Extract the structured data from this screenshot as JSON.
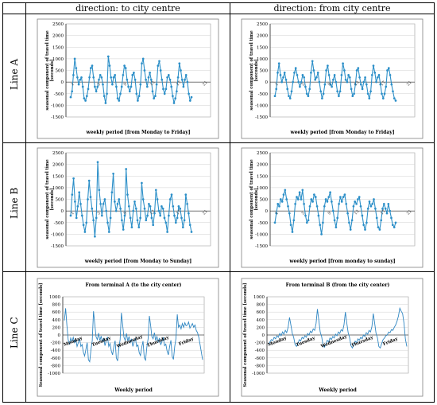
{
  "table": {
    "col_headers": [
      "direction: to city centre",
      "direction: from city centre"
    ],
    "row_labels": [
      "Line A",
      "Line B",
      "Line C"
    ]
  },
  "colors": {
    "series": "#2c8fc8",
    "series_c": "#2f86c2"
  },
  "chart_data": [
    {
      "type": "line",
      "panel": "Line A / to city centre",
      "title": "",
      "xlabel": "weekly period [from Monday to Friday]",
      "ylabel": "seasonal component of travel time [seconds]",
      "ylim": [
        -1500,
        2500
      ],
      "yticks": [
        -1500,
        -1000,
        -500,
        0,
        500,
        1000,
        1500,
        2000,
        2500
      ],
      "xticks": [
        "1",
        "5",
        "9",
        "13",
        "17",
        "21"
      ],
      "xlim": [
        0,
        22
      ],
      "markers": true,
      "values": [
        -650,
        -400,
        300,
        1000,
        600,
        200,
        -100,
        100,
        200,
        -200,
        -700,
        -800,
        -600,
        -300,
        200,
        600,
        700,
        200,
        -200,
        -400,
        -200,
        100,
        300,
        200,
        -100,
        -600,
        -900,
        -500,
        1100,
        700,
        200,
        -100,
        200,
        300,
        -200,
        -700,
        -800,
        -500,
        -200,
        300,
        700,
        600,
        100,
        -200,
        -400,
        -200,
        300,
        400,
        100,
        -500,
        -800,
        -600,
        -100,
        800,
        1000,
        500,
        100,
        -200,
        200,
        400,
        100,
        -400,
        -700,
        -600,
        -100,
        700,
        900,
        500,
        100,
        -300,
        -500,
        -300,
        200,
        300,
        100,
        -200,
        -600,
        -900,
        -700,
        -400,
        200,
        800,
        500,
        100,
        -200,
        100,
        300,
        0,
        -500,
        -800,
        -650
      ]
    },
    {
      "type": "line",
      "panel": "Line A / from city centre",
      "title": "",
      "xlabel": "weekly period [from Monday to Friday]",
      "ylabel": "seasonal component of travel time [seconds]",
      "ylim": [
        -1500,
        2500
      ],
      "yticks": [
        -1500,
        -1000,
        -500,
        0,
        500,
        1000,
        1500,
        2000,
        2500
      ],
      "xticks": [
        "1",
        "5",
        "9",
        "13",
        "17",
        "21"
      ],
      "xlim": [
        0,
        22
      ],
      "markers": true,
      "values": [
        -600,
        -300,
        400,
        800,
        300,
        0,
        200,
        400,
        100,
        -300,
        -600,
        -700,
        -400,
        0,
        400,
        600,
        300,
        0,
        -200,
        0,
        300,
        200,
        -200,
        -500,
        -600,
        -300,
        400,
        900,
        500,
        100,
        200,
        400,
        0,
        -400,
        -700,
        -500,
        -100,
        500,
        700,
        300,
        -100,
        -200,
        100,
        300,
        0,
        -400,
        -600,
        -400,
        300,
        800,
        500,
        100,
        0,
        300,
        200,
        -300,
        -600,
        -500,
        -100,
        500,
        600,
        200,
        -100,
        -300,
        0,
        200,
        -100,
        -500,
        -700,
        -400,
        300,
        700,
        400,
        0,
        200,
        300,
        -100,
        -500,
        -700,
        -500,
        -200,
        500,
        600,
        300,
        -100,
        -400,
        -700,
        -800
      ]
    },
    {
      "type": "line",
      "panel": "Line B / to city centre",
      "title": "",
      "xlabel": "weekly period [from Monday to Sunday]",
      "ylabel": "seasonal component of travel time [seconds]",
      "ylim": [
        -1500,
        2500
      ],
      "yticks": [
        -1500,
        -1000,
        -500,
        0,
        500,
        1000,
        1500,
        2000,
        2500
      ],
      "xticks": [
        "1",
        "5",
        "9",
        "13",
        "17",
        "21"
      ],
      "xlim": [
        0,
        22
      ],
      "markers": true,
      "values": [
        -200,
        700,
        1400,
        400,
        -300,
        200,
        800,
        300,
        -200,
        -600,
        -900,
        -500,
        500,
        1300,
        600,
        100,
        -400,
        -1100,
        -300,
        2100,
        900,
        300,
        -200,
        300,
        500,
        0,
        -500,
        -900,
        -300,
        800,
        1600,
        400,
        0,
        300,
        500,
        100,
        -400,
        -800,
        -200,
        1800,
        700,
        200,
        -300,
        -700,
        0,
        400,
        100,
        -400,
        -700,
        -300,
        1200,
        500,
        100,
        -400,
        -200,
        300,
        200,
        -300,
        -600,
        -100,
        900,
        500,
        0,
        -200,
        200,
        100,
        -300,
        -500,
        -900,
        -200,
        500,
        700,
        200,
        -200,
        -500,
        -300,
        200,
        100,
        -300,
        -700,
        -400,
        700,
        300,
        -100,
        -600,
        -900
      ]
    },
    {
      "type": "line",
      "panel": "Line B / from city centre",
      "title": "",
      "xlabel": "weekly period [from monday to sunday]",
      "ylabel": "seasonal component of travel time [seconds]",
      "ylim": [
        -1500,
        2500
      ],
      "yticks": [
        -1500,
        -1000,
        -500,
        0,
        500,
        1000,
        1500,
        2000,
        2500
      ],
      "xticks": [
        "1",
        "5",
        "9",
        "13",
        "17",
        "21"
      ],
      "xlim": [
        0,
        22
      ],
      "markers": true,
      "values": [
        -500,
        -100,
        300,
        200,
        500,
        400,
        700,
        900,
        500,
        200,
        -100,
        -600,
        -900,
        -400,
        300,
        600,
        500,
        800,
        500,
        900,
        300,
        -200,
        -500,
        -400,
        200,
        500,
        400,
        700,
        600,
        200,
        -200,
        -600,
        -1000,
        -500,
        200,
        500,
        400,
        600,
        800,
        400,
        0,
        -400,
        -700,
        -300,
        300,
        600,
        400,
        600,
        700,
        300,
        -100,
        -500,
        -800,
        -400,
        200,
        400,
        300,
        500,
        600,
        200,
        -200,
        -600,
        -800,
        -500,
        100,
        400,
        200,
        300,
        500,
        100,
        -300,
        -700,
        -800,
        -400,
        100,
        300,
        100,
        -100,
        300,
        0,
        -300,
        -600,
        -700,
        -500
      ]
    },
    {
      "type": "line",
      "panel": "Line C / to city centre",
      "title": "From terminal A (to the city center)",
      "xlabel": "Weekly period",
      "ylabel": "Seasonal component of travel time [seconds]",
      "ylim": [
        -1000,
        1000
      ],
      "yticks": [
        -1000,
        -800,
        -600,
        -400,
        -200,
        0,
        200,
        400,
        600,
        800,
        1000
      ],
      "days": [
        "Monday",
        "Tuesday",
        "Wednesday",
        "Thursday",
        "Friday"
      ],
      "markers": false,
      "values": [
        380,
        700,
        250,
        -120,
        -250,
        -80,
        -180,
        -60,
        -200,
        -120,
        -300,
        -200,
        -100,
        -300,
        -250,
        -450,
        -550,
        -380,
        -200,
        -650,
        -700,
        -380,
        -150,
        620,
        280,
        -50,
        -120,
        50,
        -150,
        -30,
        -180,
        -80,
        -280,
        -150,
        -50,
        -300,
        -220,
        -420,
        -520,
        -300,
        -150,
        -600,
        -680,
        -350,
        -120,
        580,
        260,
        -60,
        -140,
        40,
        -160,
        -40,
        -200,
        -100,
        -300,
        -180,
        -80,
        -300,
        -260,
        -460,
        -540,
        -320,
        -160,
        -600,
        -660,
        -320,
        -100,
        500,
        250,
        -40,
        -100,
        60,
        -150,
        -40,
        -180,
        -80,
        -260,
        -160,
        -60,
        -280,
        -240,
        -420,
        -520,
        -300,
        -140,
        -560,
        -640,
        -300,
        -80,
        540,
        200,
        260,
        160,
        300,
        200,
        320,
        240,
        260,
        340,
        180,
        240,
        300,
        200,
        260,
        120,
        60,
        -60,
        -250,
        -450,
        -650
      ]
    },
    {
      "type": "line",
      "panel": "Line C / from city centre",
      "title": "From terminal B (from the city center)",
      "xlabel": "Weekly period",
      "ylabel": "Seasonal component of travel time [seconds]",
      "ylim": [
        -1000,
        1000
      ],
      "yticks": [
        -1000,
        -800,
        -600,
        -400,
        -200,
        0,
        200,
        400,
        600,
        800,
        1000
      ],
      "days": [
        "Monday",
        "Tuesday",
        "Wednesday",
        "Thursday",
        "Friday"
      ],
      "markers": false,
      "values": [
        -250,
        -180,
        -120,
        -150,
        -60,
        -100,
        -20,
        -60,
        40,
        -20,
        80,
        20,
        120,
        60,
        200,
        460,
        260,
        40,
        -60,
        -250,
        -300,
        -220,
        -120,
        -160,
        -60,
        -100,
        -20,
        -60,
        40,
        0,
        100,
        60,
        160,
        120,
        300,
        680,
        380,
        80,
        -40,
        -260,
        -320,
        -240,
        -140,
        -180,
        -80,
        -120,
        -40,
        -80,
        20,
        -20,
        80,
        40,
        140,
        100,
        260,
        600,
        320,
        60,
        -60,
        -280,
        -340,
        -260,
        -160,
        -200,
        -100,
        -140,
        -60,
        -100,
        0,
        -40,
        60,
        20,
        120,
        80,
        220,
        560,
        300,
        40,
        -80,
        -300,
        -340,
        -220,
        -120,
        -80,
        -20,
        0,
        80,
        60,
        140,
        120,
        200,
        260,
        360,
        500,
        700,
        620,
        560,
        300,
        -100,
        -300
      ]
    }
  ]
}
